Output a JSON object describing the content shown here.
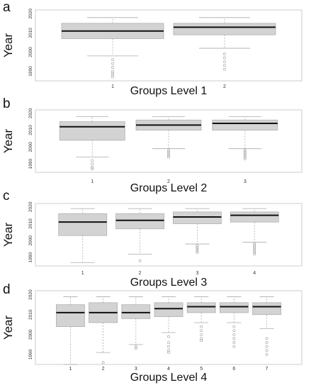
{
  "chart_data": [
    {
      "type": "box",
      "panel_label": "a",
      "ylabel": "Year",
      "xlabel": "Groups Level 1",
      "ylim": [
        1985,
        2022
      ],
      "yticks": [
        1990,
        2000,
        2010,
        2020
      ],
      "categories": [
        "1",
        "2"
      ],
      "boxes": [
        {
          "whisker_low": 1998,
          "q1": 2007,
          "median": 2011,
          "q3": 2015,
          "whisker_high": 2018,
          "outliers": [
            1996,
            1994,
            1992,
            1990,
            1989,
            1988,
            1987
          ]
        },
        {
          "whisker_low": 2002,
          "q1": 2009,
          "median": 2013,
          "q3": 2015,
          "whisker_high": 2018,
          "outliers": [
            1999,
            1997,
            1995,
            1993,
            1991
          ]
        }
      ]
    },
    {
      "type": "box",
      "panel_label": "b",
      "ylabel": "Year",
      "xlabel": "Groups Level 2",
      "ylim": [
        1985,
        2022
      ],
      "yticks": [
        1990,
        2000,
        2010,
        2020
      ],
      "categories": [
        "1",
        "2",
        "3"
      ],
      "boxes": [
        {
          "whisker_low": 1994,
          "q1": 2004,
          "median": 2012,
          "q3": 2015,
          "whisker_high": 2018,
          "outliers": [
            1992,
            1990,
            1988,
            1987
          ]
        },
        {
          "whisker_low": 1999,
          "q1": 2010,
          "median": 2013,
          "q3": 2016,
          "whisker_high": 2018,
          "outliers": [
            1998,
            1997,
            1996,
            1995,
            1994
          ]
        },
        {
          "whisker_low": 1999,
          "q1": 2010,
          "median": 2014,
          "q3": 2016,
          "whisker_high": 2018,
          "outliers": [
            1998,
            1997,
            1996,
            1995,
            1994,
            1993
          ]
        }
      ]
    },
    {
      "type": "box",
      "panel_label": "c",
      "ylabel": "Year",
      "xlabel": "Groups Level 3",
      "ylim": [
        1985,
        2022
      ],
      "yticks": [
        1990,
        2000,
        2010,
        2020
      ],
      "categories": [
        "1",
        "2",
        "3",
        "4"
      ],
      "boxes": [
        {
          "whisker_low": 1987,
          "q1": 2003,
          "median": 2011,
          "q3": 2016,
          "whisker_high": 2019,
          "outliers": []
        },
        {
          "whisker_low": 1992,
          "q1": 2007,
          "median": 2012,
          "q3": 2016,
          "whisker_high": 2019,
          "outliers": [
            1988
          ]
        },
        {
          "whisker_low": 1998,
          "q1": 2010,
          "median": 2014,
          "q3": 2017,
          "whisker_high": 2019,
          "outliers": [
            1997,
            1996,
            1995,
            1994,
            1993
          ]
        },
        {
          "whisker_low": 1999,
          "q1": 2011,
          "median": 2015,
          "q3": 2017,
          "whisker_high": 2019,
          "outliers": [
            1998,
            1997,
            1996,
            1995,
            1994,
            1993,
            1992
          ]
        }
      ]
    },
    {
      "type": "box",
      "panel_label": "d",
      "ylabel": "Year",
      "xlabel": "Groups Level 4",
      "ylim": [
        1985,
        2022
      ],
      "yticks": [
        1990,
        2000,
        2010,
        2020
      ],
      "categories": [
        "1",
        "2",
        "3",
        "4",
        "5",
        "6",
        "7"
      ],
      "boxes": [
        {
          "whisker_low": 1985,
          "q1": 2004,
          "median": 2011,
          "q3": 2015,
          "whisker_high": 2019,
          "outliers": []
        },
        {
          "whisker_low": 1991,
          "q1": 2006,
          "median": 2011,
          "q3": 2016,
          "whisker_high": 2019,
          "outliers": [
            1986
          ]
        },
        {
          "whisker_low": 1995,
          "q1": 2008,
          "median": 2011,
          "q3": 2015,
          "whisker_high": 2019,
          "outliers": [
            1994,
            1993
          ]
        },
        {
          "whisker_low": 2001,
          "q1": 2009,
          "median": 2013,
          "q3": 2016,
          "whisker_high": 2019,
          "outliers": [
            1999,
            1996,
            1994,
            1992,
            1991
          ]
        },
        {
          "whisker_low": 2006,
          "q1": 2011,
          "median": 2014,
          "q3": 2016,
          "whisker_high": 2019,
          "outliers": [
            2004,
            2002,
            2000,
            1998,
            1997
          ]
        },
        {
          "whisker_low": 2006,
          "q1": 2011,
          "median": 2014,
          "q3": 2016,
          "whisker_high": 2019,
          "outliers": [
            2004,
            2002,
            2000,
            1998,
            1996,
            1994
          ]
        },
        {
          "whisker_low": 2003,
          "q1": 2010,
          "median": 2014,
          "q3": 2016,
          "whisker_high": 2019,
          "outliers": [
            1998,
            1996,
            1994,
            1992,
            1990
          ]
        }
      ]
    }
  ],
  "colors": {
    "box_fill": "#d3d3d3",
    "box_stroke": "#b0b0b0",
    "median": "#111111",
    "whisker": "#aaaaaa",
    "outlier": "#9a9a9a",
    "frame": "#cccccc",
    "axis_text": "#333333",
    "label_text": "#111111"
  }
}
